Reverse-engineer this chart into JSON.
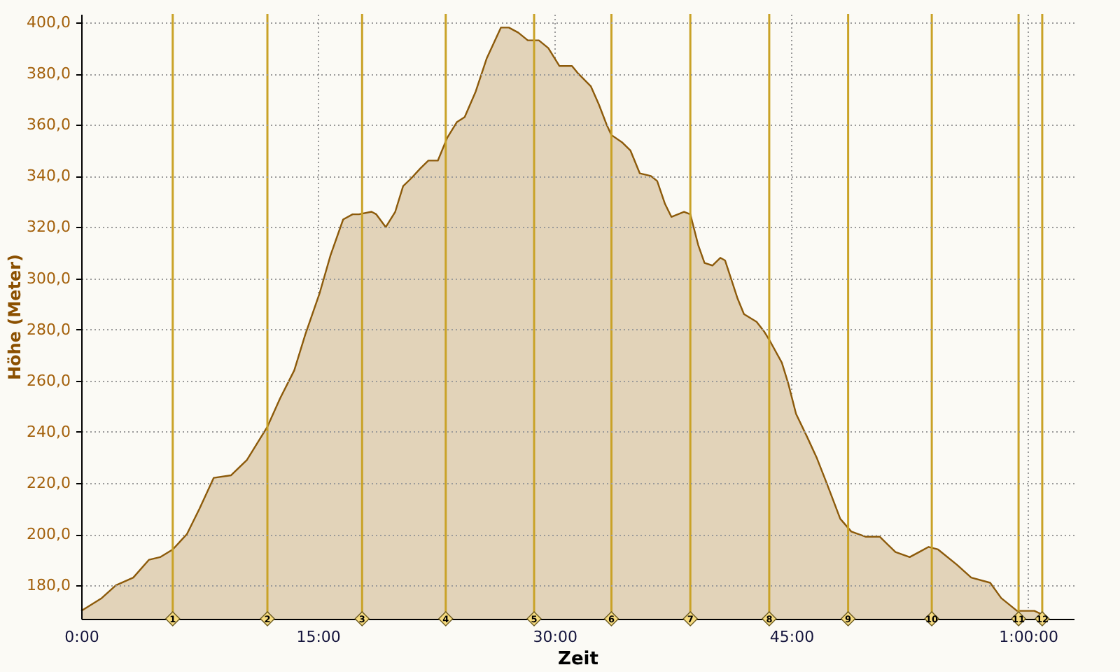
{
  "chart_data": {
    "type": "area",
    "xlabel": "Zeit",
    "ylabel": "Höhe (Meter)",
    "grid": true,
    "xlim": [
      0,
      62.9
    ],
    "ylim": [
      166.9,
      403.3
    ],
    "xticks": [
      {
        "value": 0,
        "label": "0:00"
      },
      {
        "value": 15,
        "label": "15:00"
      },
      {
        "value": 30,
        "label": "30:00"
      },
      {
        "value": 45,
        "label": "45:00"
      },
      {
        "value": 60,
        "label": "1:00:00"
      }
    ],
    "yticks": [
      {
        "value": 180,
        "label": "180,0"
      },
      {
        "value": 200,
        "label": "200,0"
      },
      {
        "value": 220,
        "label": "220,0"
      },
      {
        "value": 240,
        "label": "240,0"
      },
      {
        "value": 260,
        "label": "260,0"
      },
      {
        "value": 280,
        "label": "280,0"
      },
      {
        "value": 300,
        "label": "300,0"
      },
      {
        "value": 320,
        "label": "320,0"
      },
      {
        "value": 340,
        "label": "340,0"
      },
      {
        "value": 360,
        "label": "360,0"
      },
      {
        "value": 380,
        "label": "380,0"
      },
      {
        "value": 400,
        "label": "400,0"
      }
    ],
    "series": [
      {
        "color": "#e2d3b9",
        "x": [
          0.0,
          1.3,
          2.2,
          3.3,
          4.3,
          5.0,
          5.8,
          6.7,
          7.5,
          8.4,
          9.5,
          10.5,
          11.8,
          12.6,
          13.5,
          14.2,
          15.1,
          15.8,
          16.6,
          17.2,
          17.6,
          18.4,
          18.7,
          19.3,
          19.9,
          20.4,
          20.9,
          21.5,
          22.0,
          22.6,
          23.2,
          23.8,
          24.3,
          25.0,
          25.7,
          26.6,
          27.1,
          27.7,
          28.3,
          29.0,
          29.6,
          30.3,
          31.1,
          31.5,
          32.3,
          32.8,
          33.3,
          33.6,
          34.3,
          34.8,
          35.4,
          36.1,
          36.5,
          37.0,
          37.4,
          38.2,
          38.6,
          39.1,
          39.5,
          40.0,
          40.5,
          40.8,
          41.6,
          42.0,
          42.8,
          43.3,
          43.6,
          44.4,
          44.8,
          45.3,
          46.0,
          46.6,
          47.3,
          48.1,
          48.8,
          49.7,
          50.6,
          51.6,
          52.5,
          53.1,
          53.7,
          54.3,
          55.5,
          56.4,
          57.6,
          58.3,
          59.3,
          60.4,
          61.1
        ],
        "values": [
          170,
          175,
          180,
          183,
          190,
          191,
          194,
          200,
          210,
          222,
          223,
          229,
          242,
          253,
          264,
          278,
          294,
          309,
          323,
          325,
          325,
          326,
          325,
          320,
          326,
          336,
          339,
          343,
          346,
          346,
          355,
          361,
          363,
          373,
          386,
          398,
          398,
          396,
          393,
          393,
          390,
          383,
          383,
          380,
          375,
          368,
          360,
          356,
          353,
          350,
          341,
          340,
          338,
          329,
          324,
          326,
          325,
          313,
          306,
          305,
          308,
          307,
          292,
          286,
          283,
          279,
          276,
          267,
          259,
          247,
          238,
          230,
          219,
          206,
          201,
          199,
          199,
          193,
          191,
          193,
          195,
          194,
          188,
          183,
          181,
          175,
          170,
          170,
          168
        ]
      }
    ],
    "ref_lines": [
      {
        "axis": "x",
        "value": 5.8,
        "color": "#c9a227"
      },
      {
        "axis": "x",
        "value": 11.8,
        "color": "#c9a227"
      },
      {
        "axis": "x",
        "value": 17.8,
        "color": "#c9a227"
      },
      {
        "axis": "x",
        "value": 23.1,
        "color": "#c9a227"
      },
      {
        "axis": "x",
        "value": 28.7,
        "color": "#c9a227"
      },
      {
        "axis": "x",
        "value": 33.6,
        "color": "#c9a227"
      },
      {
        "axis": "x",
        "value": 38.6,
        "color": "#c9a227"
      },
      {
        "axis": "x",
        "value": 43.6,
        "color": "#c9a227"
      },
      {
        "axis": "x",
        "value": 48.6,
        "color": "#c9a227"
      },
      {
        "axis": "x",
        "value": 53.9,
        "color": "#c9a227"
      },
      {
        "axis": "x",
        "value": 59.4,
        "color": "#c9a227"
      },
      {
        "axis": "x",
        "value": 60.9,
        "color": "#c9a227"
      }
    ],
    "annotations": [
      {
        "text": "1",
        "x": 5.8,
        "y": 166.9
      },
      {
        "text": "2",
        "x": 11.8,
        "y": 166.9
      },
      {
        "text": "3",
        "x": 17.8,
        "y": 166.9
      },
      {
        "text": "4",
        "x": 23.1,
        "y": 166.9
      },
      {
        "text": "5",
        "x": 28.7,
        "y": 166.9
      },
      {
        "text": "6",
        "x": 33.6,
        "y": 166.9
      },
      {
        "text": "7",
        "x": 38.6,
        "y": 166.9
      },
      {
        "text": "8",
        "x": 43.6,
        "y": 166.9
      },
      {
        "text": "9",
        "x": 48.6,
        "y": 166.9
      },
      {
        "text": "10",
        "x": 53.9,
        "y": 166.9
      },
      {
        "text": "11",
        "x": 59.4,
        "y": 166.9
      },
      {
        "text": "12",
        "x": 60.9,
        "y": 166.9
      }
    ]
  }
}
